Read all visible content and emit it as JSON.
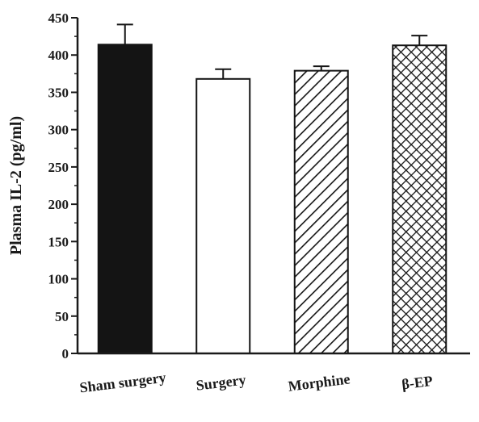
{
  "chart_data": {
    "type": "bar",
    "categories": [
      "Sham surgery",
      "Surgery",
      "Morphine",
      "β-EP"
    ],
    "values": [
      414,
      368,
      379,
      413
    ],
    "errors": [
      27,
      13,
      6,
      13
    ],
    "patterns": [
      "solid",
      "empty",
      "diagonal",
      "crosshatch"
    ],
    "title": "",
    "xlabel": "",
    "ylabel": "Plasma IL-2 (pg/ml)",
    "ylim": [
      0,
      450
    ],
    "yticks": [
      0,
      50,
      100,
      150,
      200,
      250,
      300,
      350,
      400,
      450
    ],
    "grid": false,
    "colors": {
      "bar_fill_solid": "#141414",
      "bar_stroke": "#141414",
      "axis": "#1a1a1a"
    }
  }
}
